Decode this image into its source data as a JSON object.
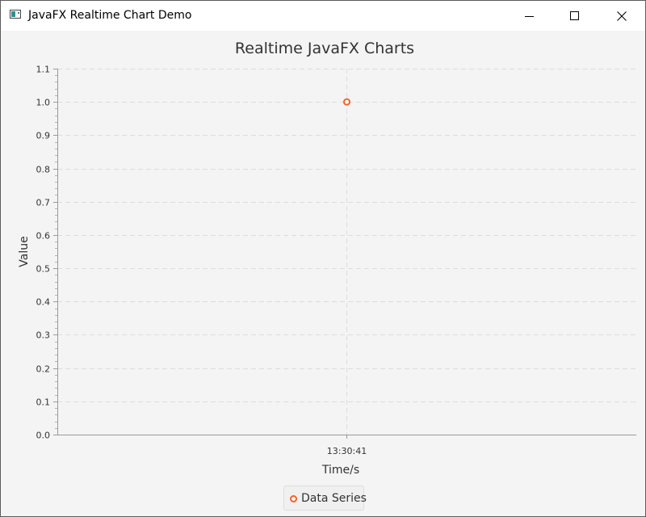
{
  "window": {
    "title": "JavaFX Realtime Chart Demo",
    "icon": "java-app-icon",
    "controls": {
      "minimize_icon": "minimize-icon",
      "maximize_icon": "maximize-icon",
      "close_icon": "close-icon"
    }
  },
  "colors": {
    "series": "#f3622d",
    "grid": "#dddddd",
    "background": "#f4f4f4"
  },
  "chart_data": {
    "type": "scatter",
    "title": "Realtime JavaFX Charts",
    "xlabel": "Time/s",
    "ylabel": "Value",
    "ylim": [
      0,
      1.1
    ],
    "y_ticks": [
      "0.0",
      "0.1",
      "0.2",
      "0.3",
      "0.4",
      "0.5",
      "0.6",
      "0.7",
      "0.8",
      "0.9",
      "1.0",
      "1.1"
    ],
    "x_categories": [
      "13:30:41"
    ],
    "grid": true,
    "legend": "bottom",
    "series": [
      {
        "name": "Data Series",
        "color": "#f3622d",
        "points": [
          {
            "x": "13:30:41",
            "y": 1.0
          }
        ]
      }
    ]
  }
}
